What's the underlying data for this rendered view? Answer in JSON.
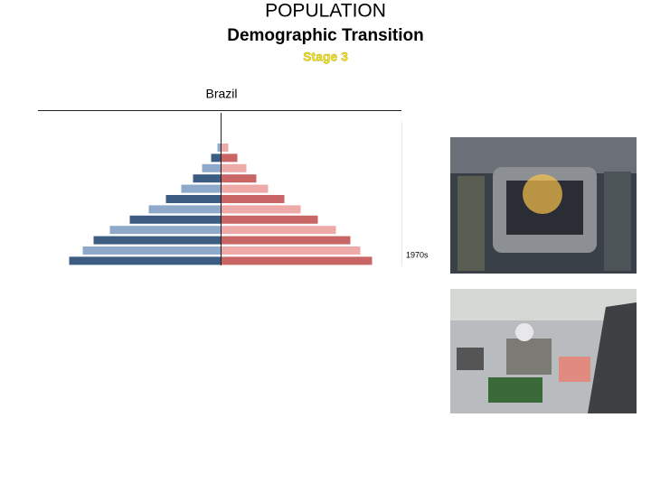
{
  "slide": {
    "title": "POPULATION",
    "subtitle": "Demographic Transition",
    "stage": "Stage 3"
  },
  "chart_data": {
    "type": "pyramid",
    "title": "Brazil",
    "annotation": "1970s",
    "xlim": [
      0,
      200
    ],
    "series": [
      {
        "side": "left",
        "colors": [
          "#8ea9c9",
          "#3d5c82"
        ],
        "values": [
          4,
          11,
          21,
          31,
          44,
          61,
          80,
          101,
          123,
          141,
          153,
          168
        ]
      },
      {
        "side": "right",
        "colors": [
          "#eea9a9",
          "#c96565"
        ],
        "values": [
          8,
          18,
          28,
          39,
          52,
          70,
          88,
          107,
          127,
          143,
          154,
          167
        ]
      }
    ]
  }
}
